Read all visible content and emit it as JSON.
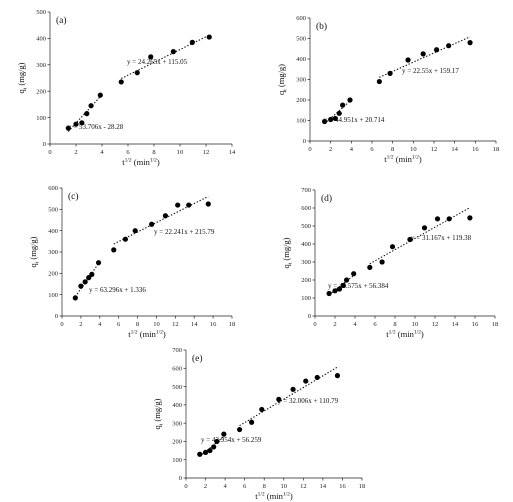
{
  "chart_data": [
    {
      "type": "scatter",
      "panel_label": "(a)",
      "xlabel": "t^1/2 (min^1/2)",
      "ylabel": "q_t (mg/g)",
      "xlim": [
        0,
        14
      ],
      "ylim": [
        0,
        500
      ],
      "xticks": [
        0,
        2,
        4,
        6,
        8,
        10,
        12,
        14
      ],
      "yticks": [
        0,
        100,
        200,
        300,
        400,
        500
      ],
      "points": [
        [
          1.41,
          60
        ],
        [
          2.0,
          75
        ],
        [
          2.45,
          80
        ],
        [
          2.83,
          115
        ],
        [
          3.16,
          145
        ],
        [
          3.87,
          185
        ],
        [
          5.48,
          235
        ],
        [
          6.71,
          270
        ],
        [
          7.75,
          330
        ],
        [
          9.49,
          350
        ],
        [
          10.95,
          385
        ],
        [
          12.25,
          405
        ]
      ],
      "fits": [
        {
          "equation": "y = 53.706x - 28.28",
          "slope": 53.706,
          "intercept": -28.28,
          "x_range": [
            1.41,
            3.87
          ]
        },
        {
          "equation": "y = 24.265x + 115.05",
          "slope": 24.265,
          "intercept": 115.05,
          "x_range": [
            5.48,
            12.25
          ]
        }
      ]
    },
    {
      "type": "scatter",
      "panel_label": "(b)",
      "xlabel": "t^1/2 (min^1/2)",
      "ylabel": "q_t (mg/g)",
      "xlim": [
        0,
        18
      ],
      "ylim": [
        0,
        600
      ],
      "xticks": [
        0,
        2,
        4,
        6,
        8,
        10,
        12,
        14,
        16,
        18
      ],
      "yticks": [
        0,
        100,
        200,
        300,
        400,
        500,
        600
      ],
      "points": [
        [
          1.41,
          95
        ],
        [
          2.0,
          105
        ],
        [
          2.45,
          110
        ],
        [
          2.83,
          135
        ],
        [
          3.16,
          175
        ],
        [
          3.87,
          200
        ],
        [
          6.71,
          290
        ],
        [
          7.75,
          330
        ],
        [
          9.49,
          395
        ],
        [
          10.95,
          425
        ],
        [
          12.25,
          445
        ],
        [
          13.42,
          465
        ],
        [
          15.49,
          480
        ]
      ],
      "fits": [
        {
          "equation": "y = 44.951x + 20.714",
          "slope": 44.951,
          "intercept": 20.714,
          "x_range": [
            1.41,
            3.87
          ]
        },
        {
          "equation": "y = 22.55x + 159.17",
          "slope": 22.55,
          "intercept": 159.17,
          "x_range": [
            6.71,
            15.49
          ]
        }
      ]
    },
    {
      "type": "scatter",
      "panel_label": "(c)",
      "xlabel": "t^1/2 (min^1/2)",
      "ylabel": "q_t (mg/g)",
      "xlim": [
        0,
        18
      ],
      "ylim": [
        0,
        600
      ],
      "xticks": [
        0,
        2,
        4,
        6,
        8,
        10,
        12,
        14,
        16,
        18
      ],
      "yticks": [
        0,
        100,
        200,
        300,
        400,
        500,
        600
      ],
      "points": [
        [
          1.41,
          85
        ],
        [
          2.0,
          140
        ],
        [
          2.45,
          160
        ],
        [
          2.83,
          180
        ],
        [
          3.16,
          195
        ],
        [
          3.87,
          250
        ],
        [
          5.48,
          310
        ],
        [
          6.71,
          360
        ],
        [
          7.75,
          400
        ],
        [
          9.49,
          430
        ],
        [
          10.95,
          470
        ],
        [
          12.25,
          520
        ],
        [
          13.42,
          520
        ],
        [
          15.49,
          525
        ]
      ],
      "fits": [
        {
          "equation": "y = 63.296x + 1.336",
          "slope": 63.296,
          "intercept": 1.336,
          "x_range": [
            1.41,
            3.87
          ]
        },
        {
          "equation": "y = 22.241x + 215.79",
          "slope": 22.241,
          "intercept": 215.79,
          "x_range": [
            5.48,
            15.49
          ]
        }
      ]
    },
    {
      "type": "scatter",
      "panel_label": "(d)",
      "xlabel": "t^1/2 (min^1/2)",
      "ylabel": "q_t (mg/g)",
      "xlim": [
        0,
        18
      ],
      "ylim": [
        0,
        700
      ],
      "xticks": [
        0,
        2,
        4,
        6,
        8,
        10,
        12,
        14,
        16,
        18
      ],
      "yticks": [
        0,
        100,
        200,
        300,
        400,
        500,
        600,
        700
      ],
      "points": [
        [
          1.41,
          125
        ],
        [
          2.0,
          140
        ],
        [
          2.45,
          150
        ],
        [
          2.83,
          170
        ],
        [
          3.16,
          200
        ],
        [
          3.87,
          235
        ],
        [
          5.48,
          270
        ],
        [
          6.71,
          300
        ],
        [
          7.75,
          385
        ],
        [
          9.49,
          425
        ],
        [
          10.95,
          490
        ],
        [
          12.25,
          540
        ],
        [
          13.42,
          540
        ],
        [
          15.49,
          545
        ]
      ],
      "fits": [
        {
          "equation": "y = 43.575x + 56.384",
          "slope": 43.575,
          "intercept": 56.384,
          "x_range": [
            1.41,
            3.87
          ]
        },
        {
          "equation": "y = 31.167x + 119.38",
          "slope": 31.167,
          "intercept": 119.38,
          "x_range": [
            5.48,
            15.49
          ]
        }
      ]
    },
    {
      "type": "scatter",
      "panel_label": "(e)",
      "xlabel": "t^1/2 (min^1/2)",
      "ylabel": "q_t (mg/g)",
      "xlim": [
        0,
        18
      ],
      "ylim": [
        0,
        700
      ],
      "xticks": [
        0,
        2,
        4,
        6,
        8,
        10,
        12,
        14,
        16,
        18
      ],
      "yticks": [
        0,
        100,
        200,
        300,
        400,
        500,
        600,
        700
      ],
      "points": [
        [
          1.41,
          130
        ],
        [
          2.0,
          140
        ],
        [
          2.45,
          150
        ],
        [
          2.83,
          170
        ],
        [
          3.16,
          200
        ],
        [
          3.87,
          240
        ],
        [
          5.48,
          265
        ],
        [
          6.71,
          305
        ],
        [
          7.75,
          375
        ],
        [
          9.49,
          430
        ],
        [
          10.95,
          485
        ],
        [
          12.25,
          530
        ],
        [
          13.42,
          550
        ],
        [
          15.49,
          560
        ]
      ],
      "fits": [
        {
          "equation": "y = 43.954x + 56.259",
          "slope": 43.954,
          "intercept": 56.259,
          "x_range": [
            1.41,
            3.87
          ]
        },
        {
          "equation": "y = 32.006x + 110.79",
          "slope": 32.006,
          "intercept": 110.79,
          "x_range": [
            5.48,
            15.49
          ]
        }
      ]
    }
  ]
}
